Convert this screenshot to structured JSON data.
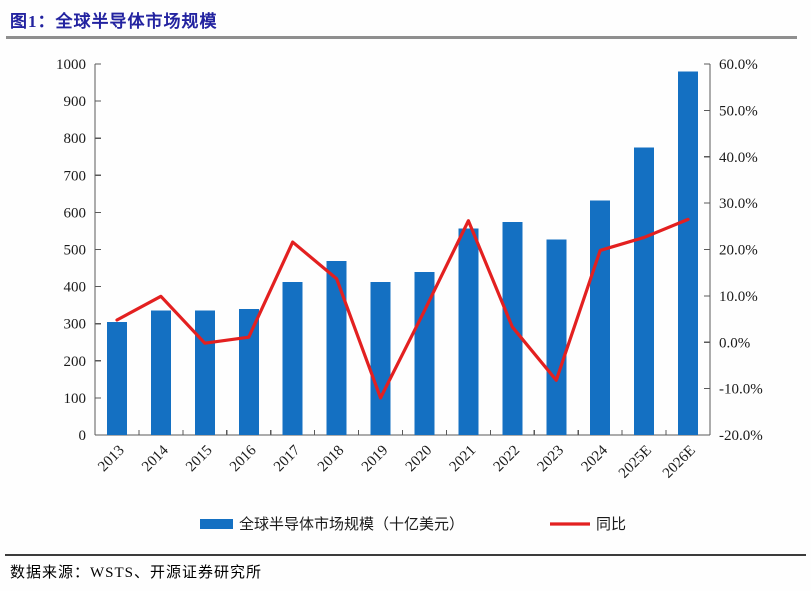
{
  "figure": {
    "title": "图1：全球半导体市场规模",
    "source": "数据来源：WSTS、开源证券研究所"
  },
  "colors": {
    "title_text": "#2323a0",
    "title_rule": "#8f8f8f",
    "source_rule": "#3c3c3c",
    "bar": "#1470c2",
    "line": "#e32020",
    "axis": "#595959",
    "tick_text": "#1a1a1a"
  },
  "chart_data": {
    "type": "bar",
    "title": "全球半导体市场规模",
    "categories": [
      "2013",
      "2014",
      "2015",
      "2016",
      "2017",
      "2018",
      "2019",
      "2020",
      "2021",
      "2022",
      "2023",
      "2024",
      "2025E",
      "2026E"
    ],
    "series": [
      {
        "name": "全球半导体市场规模（十亿美元）",
        "type": "bar",
        "axis": "left",
        "values": [
          305,
          336,
          335,
          339,
          412,
          469,
          412,
          440,
          556,
          574,
          527,
          632,
          775,
          980
        ]
      },
      {
        "name": "同比",
        "type": "line",
        "axis": "right",
        "values": [
          4.8,
          9.9,
          -0.2,
          1.1,
          21.6,
          13.7,
          -12.0,
          6.8,
          26.2,
          3.3,
          -8.2,
          19.8,
          22.6,
          26.5
        ]
      }
    ],
    "left_axis": {
      "min": 0,
      "max": 1000,
      "step": 100
    },
    "right_axis": {
      "min": -20,
      "max": 60,
      "step": 10,
      "format": "percent",
      "decimals": 1
    },
    "grid": false,
    "legend_position": "bottom",
    "x_label_rotation": -45
  }
}
